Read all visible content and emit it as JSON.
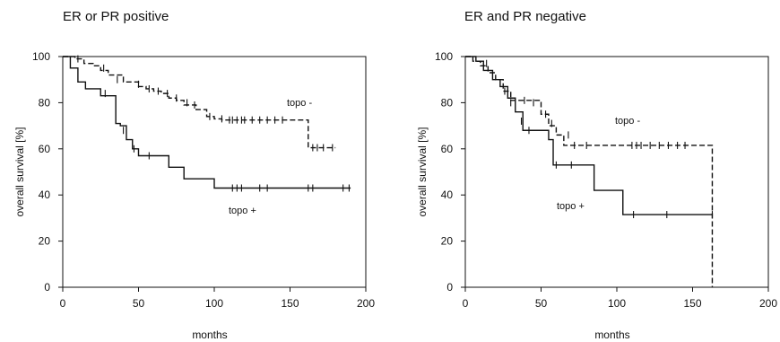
{
  "chart_data": [
    {
      "type": "line",
      "title": "ER or PR positive",
      "xlabel": "months",
      "ylabel": "overall survival [%]",
      "xlim": [
        0,
        200
      ],
      "ylim": [
        0,
        100
      ],
      "xticks": [
        "0",
        "50",
        "100",
        "150",
        "200"
      ],
      "yticks": [
        "0",
        "20",
        "40",
        "60",
        "80",
        "100"
      ],
      "series": [
        {
          "name": "topo -",
          "style": "dashed",
          "label": "topo -",
          "x": [
            0,
            8,
            14,
            20,
            25,
            30,
            40,
            50,
            55,
            60,
            65,
            70,
            75,
            80,
            88,
            95,
            100,
            105,
            120,
            140,
            162,
            180
          ],
          "y": [
            100,
            99,
            97,
            96,
            94,
            92,
            89,
            87,
            86,
            85,
            84,
            82,
            81,
            79,
            77,
            74,
            73,
            72.5,
            72.5,
            72.5,
            60.5,
            60.5
          ],
          "censored": [
            [
              10,
              99
            ],
            [
              27,
              95
            ],
            [
              36,
              90
            ],
            [
              50,
              88
            ],
            [
              57,
              86
            ],
            [
              63,
              85
            ],
            [
              69,
              84
            ],
            [
              75,
              82
            ],
            [
              82,
              80
            ],
            [
              87,
              79
            ],
            [
              97,
              74
            ],
            [
              105,
              73
            ],
            [
              110,
              72.5
            ],
            [
              112,
              72.5
            ],
            [
              115,
              72.5
            ],
            [
              118,
              72.5
            ],
            [
              120,
              72.5
            ],
            [
              125,
              72.5
            ],
            [
              130,
              72.5
            ],
            [
              135,
              72.5
            ],
            [
              140,
              72.5
            ],
            [
              145,
              72.5
            ],
            [
              165,
              60.5
            ],
            [
              168,
              60.5
            ],
            [
              172,
              60.5
            ],
            [
              178,
              60.5
            ]
          ]
        },
        {
          "name": "topo +",
          "style": "solid",
          "label": "topo +",
          "x": [
            0,
            5,
            10,
            15,
            20,
            25,
            30,
            35,
            38,
            42,
            46,
            50,
            60,
            70,
            80,
            100,
            190
          ],
          "y": [
            100,
            95,
            89,
            86,
            86,
            83,
            83,
            71,
            70,
            64,
            60,
            57,
            57,
            52,
            47,
            43,
            43
          ],
          "censored": [
            [
              28,
              84
            ],
            [
              40,
              68
            ],
            [
              47,
              60
            ],
            [
              57,
              57
            ],
            [
              112,
              43
            ],
            [
              115,
              43
            ],
            [
              118,
              43
            ],
            [
              130,
              43
            ],
            [
              135,
              43
            ],
            [
              162,
              43
            ],
            [
              165,
              43
            ],
            [
              185,
              43
            ],
            [
              189,
              43
            ]
          ]
        }
      ]
    },
    {
      "type": "line",
      "title": "ER and PR negative",
      "xlabel": "months",
      "ylabel": "overall survival [%]",
      "xlim": [
        0,
        200
      ],
      "ylim": [
        0,
        100
      ],
      "xticks": [
        "0",
        "50",
        "100",
        "150",
        "200"
      ],
      "yticks": [
        "0",
        "20",
        "40",
        "60",
        "80",
        "100"
      ],
      "series": [
        {
          "name": "topo -",
          "style": "dashed",
          "label": "topo -",
          "x": [
            0,
            5,
            10,
            15,
            20,
            25,
            30,
            40,
            50,
            55,
            60,
            65,
            68,
            163,
            163
          ],
          "y": [
            100,
            98,
            96,
            93,
            90,
            85,
            81,
            81,
            75,
            70,
            66,
            61.5,
            61.5,
            61.5,
            0
          ],
          "censored": [
            [
              30,
              80
            ],
            [
              39,
              81
            ],
            [
              45,
              80
            ],
            [
              53,
              75
            ],
            [
              57,
              71
            ],
            [
              68,
              66
            ],
            [
              72,
              61.5
            ],
            [
              80,
              61.5
            ],
            [
              110,
              61.5
            ],
            [
              113,
              61.5
            ],
            [
              116,
              61.5
            ],
            [
              122,
              61.5
            ],
            [
              128,
              61.5
            ],
            [
              134,
              61.5
            ],
            [
              140,
              61.5
            ],
            [
              145,
              61.5
            ]
          ]
        },
        {
          "name": "topo +",
          "style": "solid",
          "label": "topo +",
          "x": [
            0,
            7,
            12,
            18,
            23,
            28,
            33,
            38,
            48,
            55,
            58,
            68,
            85,
            104,
            163
          ],
          "y": [
            100,
            98,
            94,
            90,
            87,
            82,
            76,
            68,
            68,
            64,
            53,
            53,
            42,
            31.5,
            31.5
          ],
          "censored": [
            [
              14,
              97
            ],
            [
              26,
              85
            ],
            [
              37,
              72
            ],
            [
              42,
              68
            ],
            [
              60,
              53
            ],
            [
              70,
              53
            ],
            [
              111,
              31.5
            ],
            [
              133,
              31.5
            ],
            [
              163,
              31.5
            ]
          ]
        }
      ]
    }
  ]
}
